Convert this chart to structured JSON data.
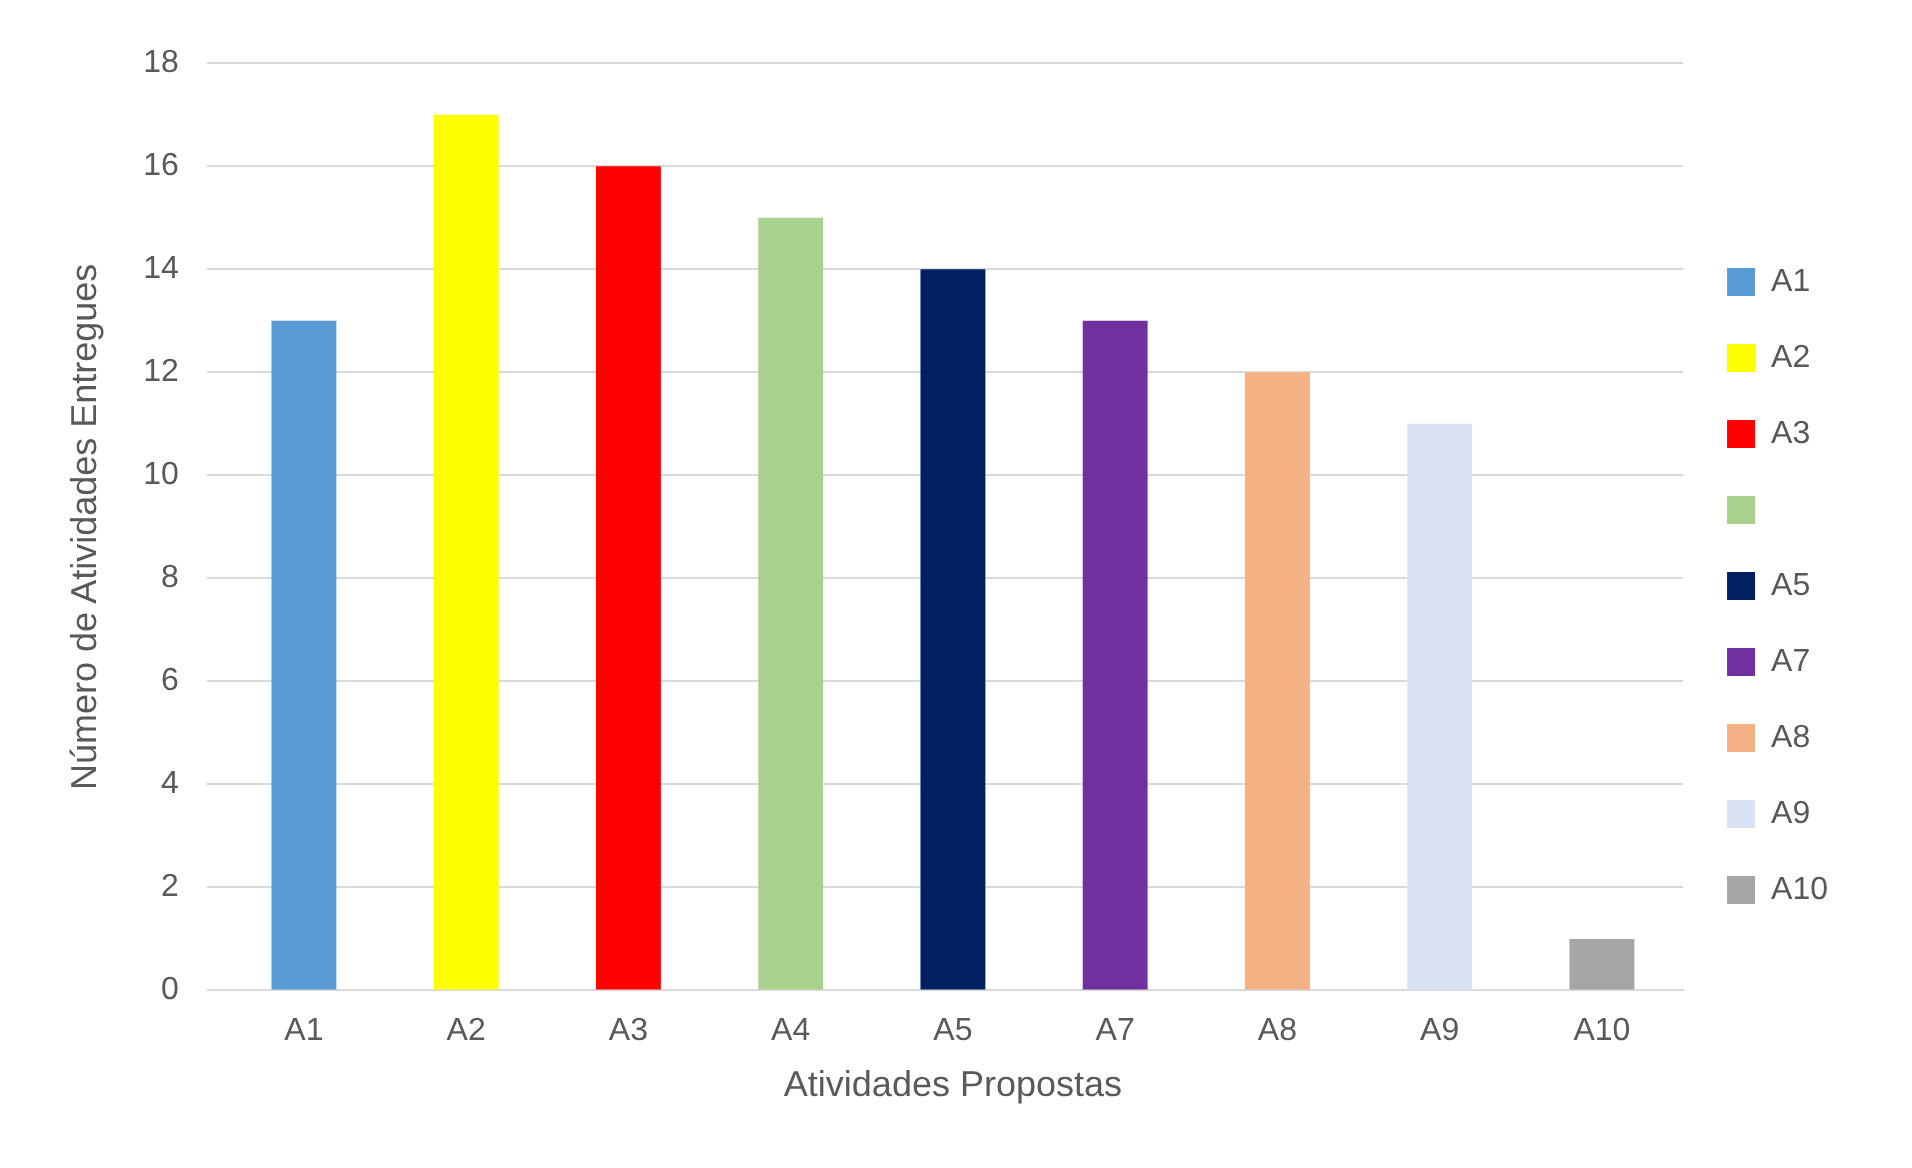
{
  "chart_data": {
    "type": "bar",
    "xlabel": "Atividades Propostas",
    "ylabel": "Número de Atividades Entregues",
    "categories": [
      "A1",
      "A2",
      "A3",
      "A4",
      "A5",
      "A7",
      "A8",
      "A9",
      "A10"
    ],
    "series": [
      {
        "name": "A1",
        "color": "#5b9bd5",
        "values": [
          13,
          null,
          null,
          null,
          null,
          null,
          null,
          null,
          null
        ]
      },
      {
        "name": "A2",
        "color": "#ffff00",
        "values": [
          null,
          17,
          null,
          null,
          null,
          null,
          null,
          null,
          null
        ]
      },
      {
        "name": "A3",
        "color": "#ff0000",
        "values": [
          null,
          null,
          16,
          null,
          null,
          null,
          null,
          null,
          null
        ]
      },
      {
        "color": "#a9d18e",
        "values": [
          null,
          null,
          null,
          15,
          null,
          null,
          null,
          null,
          null
        ]
      },
      {
        "name": "A5",
        "color": "#002060",
        "values": [
          null,
          null,
          null,
          null,
          14,
          null,
          null,
          null,
          null
        ]
      },
      {
        "name": "A7",
        "color": "#7030a0",
        "values": [
          null,
          null,
          null,
          null,
          null,
          13,
          null,
          null,
          null
        ]
      },
      {
        "name": "A8",
        "color": "#f4b183",
        "values": [
          null,
          null,
          null,
          null,
          null,
          null,
          12,
          null,
          null
        ]
      },
      {
        "name": "A9",
        "color": "#dae3f3",
        "values": [
          null,
          null,
          null,
          null,
          null,
          null,
          null,
          11,
          null
        ]
      },
      {
        "name": "A10",
        "color": "#a5a5a5",
        "values": [
          null,
          null,
          null,
          null,
          null,
          null,
          null,
          null,
          1
        ]
      }
    ],
    "ylim": [
      0,
      18
    ],
    "yticks": [
      0,
      2,
      4,
      6,
      8,
      10,
      12,
      14,
      16,
      18
    ],
    "grid": "y",
    "legend": "right"
  }
}
